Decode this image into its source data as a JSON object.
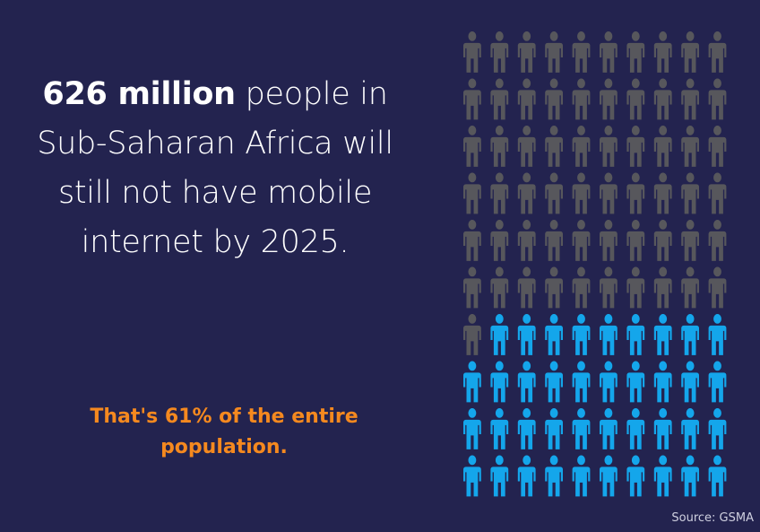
{
  "headline": {
    "strong": "626 million",
    "rest": " people in Sub-Saharan Africa will still not have mobile internet by 2025."
  },
  "subline": "That's 61% of the entire population.",
  "source": "Source: GSMA",
  "chart_data": {
    "type": "pictogram",
    "rows": 10,
    "cols": 10,
    "total_icons": 100,
    "highlighted_value": 61,
    "highlighted_color": "#57575c",
    "rest_color": "#14a6eb",
    "fill_order": "row-major from top-left"
  }
}
